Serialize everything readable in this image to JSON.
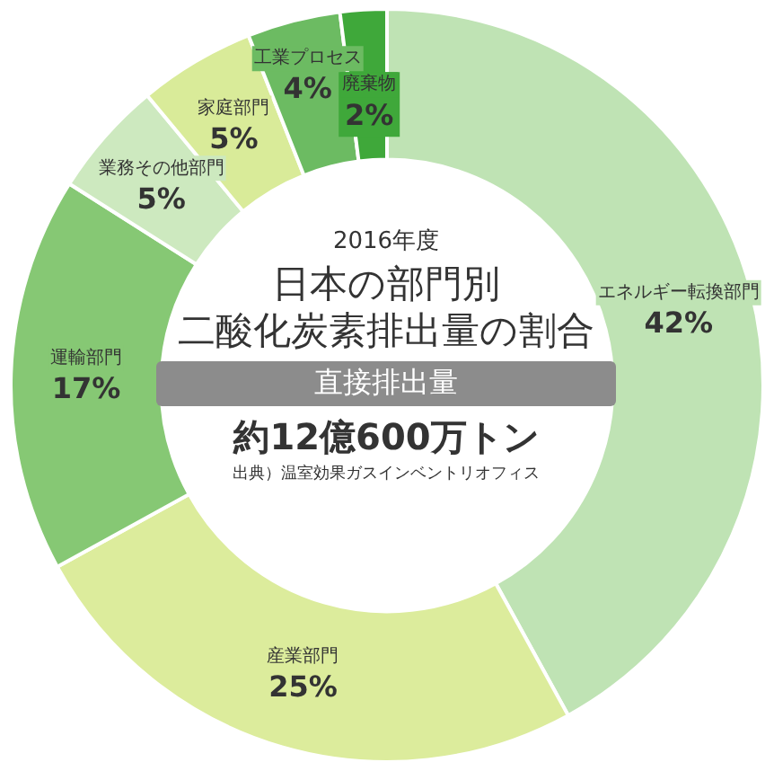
{
  "chart_data": {
    "type": "donut",
    "subtitle": "2016年度",
    "title": "日本の部門別二酸化炭素排出量の割合",
    "categories": [
      "エネルギー転換部門",
      "産業部門",
      "運輸部門",
      "業務その他部門",
      "家庭部門",
      "工業プロセス",
      "廃棄物"
    ],
    "values": [
      42,
      25,
      17,
      5,
      5,
      4,
      2
    ],
    "value_labels": [
      "42%",
      "25%",
      "17%",
      "5%",
      "5%",
      "4%",
      "2%"
    ],
    "colors": [
      "#bfe3b4",
      "#dcec9c",
      "#86c874",
      "#cde9bf",
      "#d9eb99",
      "#6cbb62",
      "#3fa83a"
    ],
    "annotations": [
      "直接排出量",
      "約12億600万トン",
      "出典）温室効果ガスインベントリオフィス"
    ],
    "legend": false
  }
}
